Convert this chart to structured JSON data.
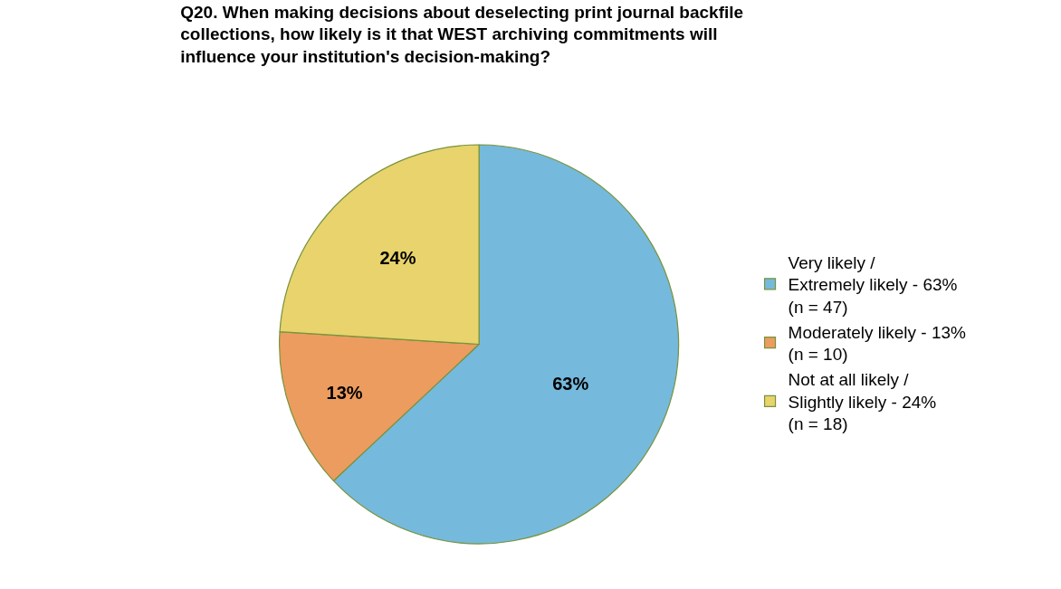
{
  "chart_data": {
    "type": "pie",
    "title": "Q20. When making decisions about deselecting print journal backfile\ncollections, how likely is it that WEST archiving commitments will\ninfluence your institution's decision-making?",
    "categories": [
      "Very likely /\nExtremely likely - 63%\n(n = 47)",
      "Moderately likely - 13%\n(n = 10)",
      "Not at all likely /\nSlightly likely - 24%\n(n = 18)"
    ],
    "values": [
      63,
      13,
      24
    ],
    "value_labels": [
      "63%",
      "13%",
      "24%"
    ],
    "colors": [
      "#75b9dc",
      "#ec9c5f",
      "#e8d36c"
    ],
    "legend": "right"
  }
}
